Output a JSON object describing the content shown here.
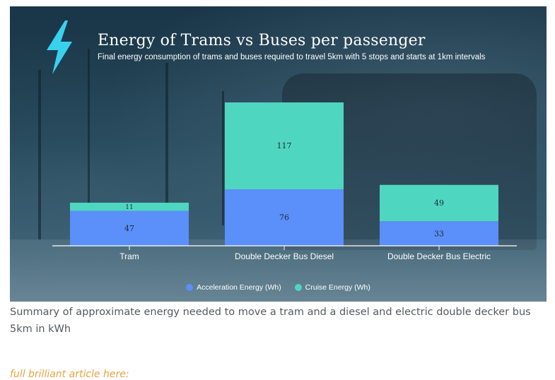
{
  "figure": {
    "title": "Energy of Trams vs Buses per passenger",
    "subtitle": "Final energy consumption of trams and buses required to travel 5km with 5 stops and starts at 1km intervals",
    "icon": "lightning-bolt-icon"
  },
  "chart_data": {
    "type": "bar",
    "stacked": true,
    "categories": [
      "Tram",
      "Double Decker Bus Diesel",
      "Double Decker Bus Electric"
    ],
    "series": [
      {
        "name": "Acceleration Energy (Wh)",
        "values": [
          47,
          76,
          33
        ],
        "color": "#5b8ff9"
      },
      {
        "name": "Cruise Energy (Wh)",
        "values": [
          11,
          117,
          49
        ],
        "color": "#4fd6c0"
      }
    ],
    "ylim": [
      0,
      193
    ],
    "grid": false,
    "legend": "bottom-center",
    "xlabel": "",
    "ylabel": ""
  },
  "caption": "Summary of approximate energy needed to move a tram and a diesel and electric double decker bus 5km in kWh",
  "link": "full brilliant article here:"
}
